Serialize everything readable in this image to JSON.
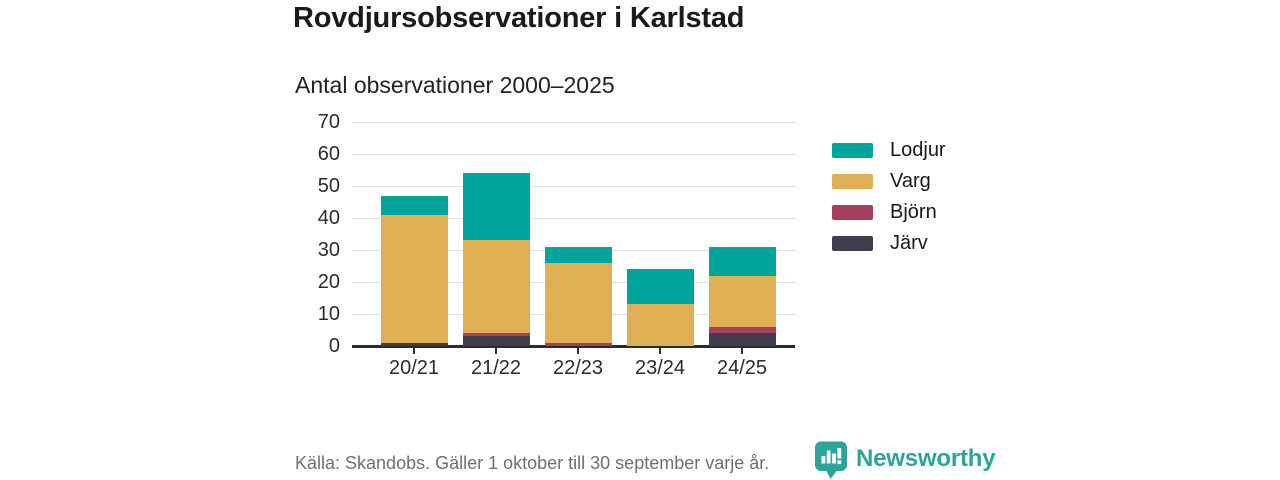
{
  "header": {
    "title": "Rovdjursobservationer i Karlstad",
    "subtitle": "Antal observationer 2000–2025"
  },
  "chart_data": {
    "type": "bar",
    "stacked": true,
    "title": "Rovdjursobservationer i Karlstad",
    "subtitle": "Antal observationer 2000–2025",
    "categories": [
      "20/21",
      "21/22",
      "22/23",
      "23/24",
      "24/25"
    ],
    "series": [
      {
        "name": "Lodjur",
        "color": "#00a49b",
        "values": [
          6,
          21,
          5,
          11,
          9
        ]
      },
      {
        "name": "Varg",
        "color": "#dfaf53",
        "values": [
          40,
          29,
          25,
          13,
          16
        ]
      },
      {
        "name": "Björn",
        "color": "#a63f5c",
        "values": [
          0,
          1,
          1,
          0,
          2
        ]
      },
      {
        "name": "Järv",
        "color": "#403d4d",
        "values": [
          1,
          3,
          0,
          0,
          4
        ]
      }
    ],
    "stack_totals": [
      47,
      54,
      31,
      24,
      31
    ],
    "ylim": [
      0,
      70
    ],
    "yticks": [
      0,
      10,
      20,
      30,
      40,
      50,
      60,
      70
    ],
    "xlabel": "",
    "ylabel": "",
    "grid": "horizontal",
    "legend_position": "right"
  },
  "footer": {
    "source": "Källa: Skandobs. Gäller 1 oktober till 30 september varje år.",
    "brand": "Newsworthy"
  },
  "colors": {
    "lodjur_teal": "#00a49b",
    "varg_gold": "#dfaf53",
    "bjorn_maroon": "#a63f5c",
    "jarv_dark": "#403d4d",
    "brand_teal": "#2ba49c",
    "gridline": "#e0e0e0",
    "axis": "#2b2b2b",
    "text_dark": "#1a1a1a",
    "text_gray": "#6f6f6f"
  }
}
